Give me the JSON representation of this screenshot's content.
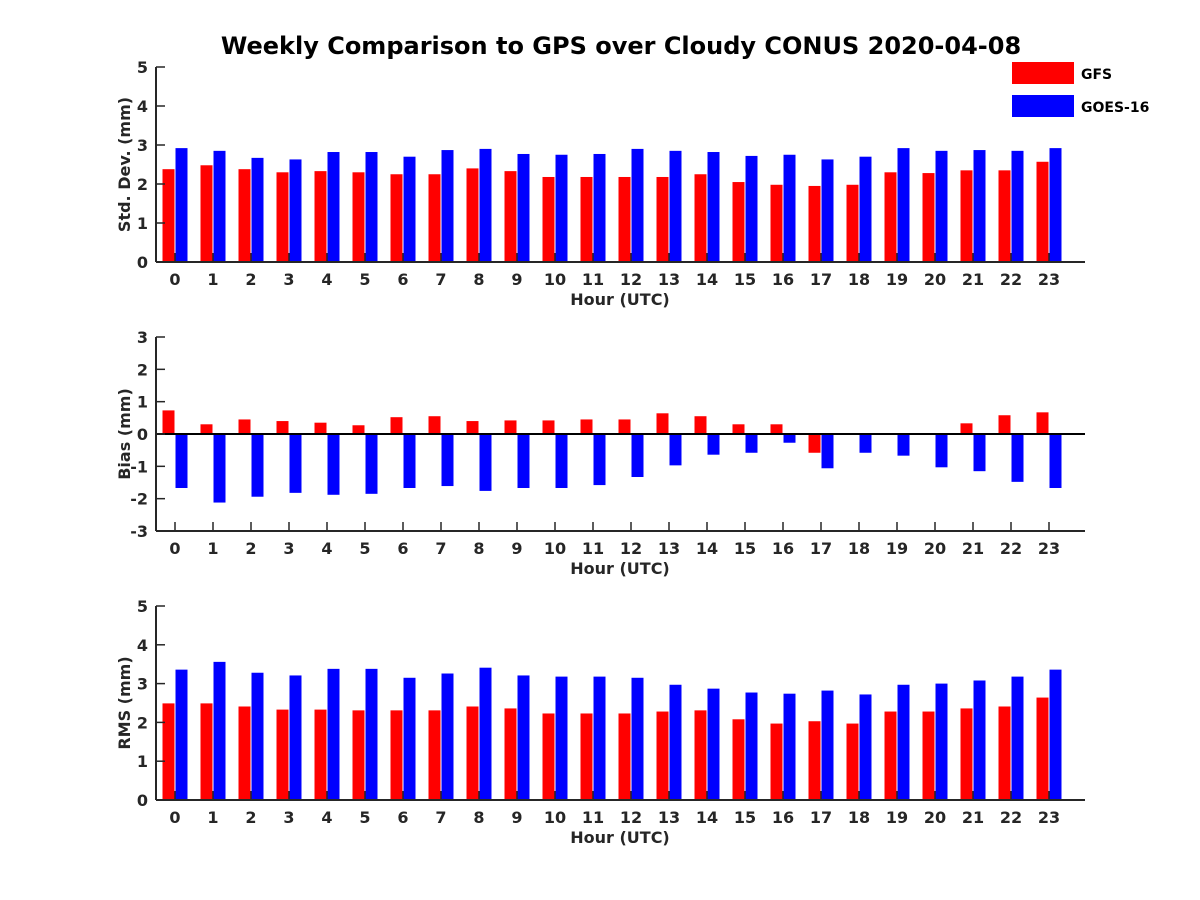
{
  "chart_data": {
    "title": "Weekly Comparison to GPS over Cloudy CONUS 2020-04-08",
    "legend": {
      "placement": "top-right",
      "entries": [
        "GFS",
        "GOES-16"
      ]
    },
    "colors": {
      "GFS": "#ff0000",
      "GOES-16": "#0000ff"
    },
    "categories": [
      "0",
      "1",
      "2",
      "3",
      "4",
      "5",
      "6",
      "7",
      "8",
      "9",
      "10",
      "11",
      "12",
      "13",
      "14",
      "15",
      "16",
      "17",
      "18",
      "19",
      "20",
      "21",
      "22",
      "23"
    ],
    "panels": [
      {
        "type": "bar",
        "xlabel": "Hour (UTC)",
        "ylabel": "Std. Dev. (mm)",
        "ylim": [
          0,
          5
        ],
        "yticks": [
          0,
          1,
          2,
          3,
          4,
          5
        ],
        "grid": false,
        "series": [
          {
            "name": "GFS",
            "values": [
              2.38,
              2.48,
              2.38,
              2.3,
              2.33,
              2.3,
              2.25,
              2.25,
              2.4,
              2.33,
              2.18,
              2.18,
              2.18,
              2.18,
              2.25,
              2.05,
              1.98,
              1.95,
              1.98,
              2.3,
              2.28,
              2.35,
              2.35,
              2.57
            ]
          },
          {
            "name": "GOES-16",
            "values": [
              2.92,
              2.85,
              2.67,
              2.63,
              2.82,
              2.82,
              2.7,
              2.87,
              2.9,
              2.77,
              2.75,
              2.77,
              2.9,
              2.85,
              2.82,
              2.72,
              2.75,
              2.63,
              2.7,
              2.92,
              2.85,
              2.87,
              2.85,
              2.92
            ]
          }
        ]
      },
      {
        "type": "bar",
        "xlabel": "Hour (UTC)",
        "ylabel": "Bias (mm)",
        "ylim": [
          -3,
          3
        ],
        "yticks": [
          -3,
          -2,
          -1,
          0,
          1,
          2,
          3
        ],
        "grid": false,
        "zero_line": true,
        "series": [
          {
            "name": "GFS",
            "values": [
              0.73,
              0.3,
              0.45,
              0.4,
              0.35,
              0.27,
              0.52,
              0.55,
              0.4,
              0.42,
              0.42,
              0.45,
              0.45,
              0.64,
              0.55,
              0.3,
              0.3,
              -0.58,
              0.0,
              0.0,
              0.0,
              0.33,
              0.58,
              0.67
            ]
          },
          {
            "name": "GOES-16",
            "values": [
              -1.67,
              -2.12,
              -1.94,
              -1.82,
              -1.88,
              -1.85,
              -1.67,
              -1.61,
              -1.76,
              -1.67,
              -1.67,
              -1.58,
              -1.33,
              -0.97,
              -0.64,
              -0.58,
              -0.27,
              -1.06,
              -0.58,
              -0.67,
              -1.03,
              -1.15,
              -1.48,
              -1.67
            ]
          }
        ]
      },
      {
        "type": "bar",
        "xlabel": "Hour (UTC)",
        "ylabel": "RMS (mm)",
        "ylim": [
          0,
          5
        ],
        "yticks": [
          0,
          1,
          2,
          3,
          4,
          5
        ],
        "grid": false,
        "series": [
          {
            "name": "GFS",
            "values": [
              2.49,
              2.49,
              2.41,
              2.33,
              2.33,
              2.31,
              2.31,
              2.31,
              2.41,
              2.36,
              2.23,
              2.23,
              2.23,
              2.28,
              2.31,
              2.08,
              1.97,
              2.03,
              1.97,
              2.28,
              2.28,
              2.36,
              2.41,
              2.64
            ]
          },
          {
            "name": "GOES-16",
            "values": [
              3.36,
              3.56,
              3.28,
              3.21,
              3.38,
              3.38,
              3.15,
              3.26,
              3.41,
              3.21,
              3.18,
              3.18,
              3.15,
              2.97,
              2.87,
              2.77,
              2.74,
              2.82,
              2.72,
              2.97,
              3.0,
              3.08,
              3.18,
              3.36
            ]
          }
        ]
      }
    ]
  }
}
